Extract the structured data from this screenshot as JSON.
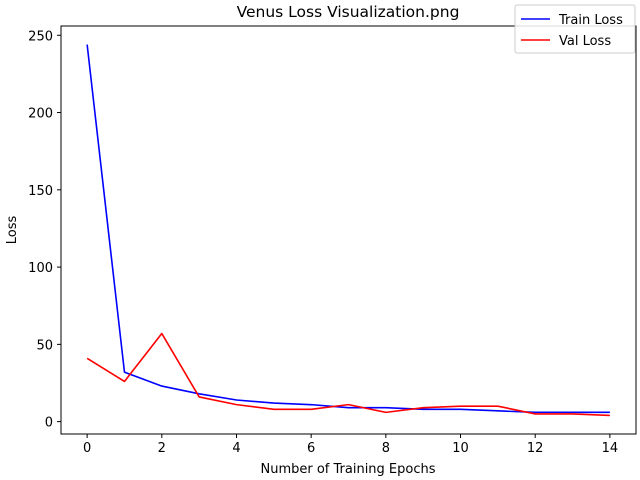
{
  "chart_data": {
    "type": "line",
    "title": "Venus Loss Visualization.png",
    "xlabel": "Number of Training Epochs",
    "ylabel": "Loss",
    "xlim": [
      -0.7,
      14.7
    ],
    "ylim": [
      -8,
      256
    ],
    "xticks": [
      0,
      2,
      4,
      6,
      8,
      10,
      12,
      14
    ],
    "yticks": [
      0,
      50,
      100,
      150,
      200,
      250
    ],
    "grid": false,
    "legend_position": "top-right",
    "x": [
      0,
      1,
      2,
      3,
      4,
      5,
      6,
      7,
      8,
      9,
      10,
      11,
      12,
      13,
      14
    ],
    "series": [
      {
        "name": "Train Loss",
        "color": "#0000ff",
        "values": [
          244,
          32,
          23,
          18,
          14,
          12,
          11,
          9,
          9,
          8,
          8,
          7,
          6,
          6,
          6
        ]
      },
      {
        "name": "Val Loss",
        "color": "#ff0000",
        "values": [
          41,
          26,
          57,
          16,
          11,
          8,
          8,
          11,
          6,
          9,
          10,
          10,
          5,
          5,
          4
        ]
      }
    ]
  }
}
